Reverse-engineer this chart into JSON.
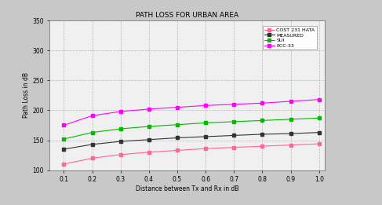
{
  "title": "PATH LOSS FOR URBAN AREA",
  "xlabel": "Distance between Tx and Rx in dB",
  "ylabel": "Path Loss in dB",
  "ylim": [
    100,
    350
  ],
  "yticks": [
    100,
    150,
    200,
    250,
    300,
    350
  ],
  "xticks": [
    0.1,
    0.2,
    0.3,
    0.4,
    0.5,
    0.6,
    0.7,
    0.8,
    0.9,
    1.0
  ],
  "legend_labels": [
    "COST 231 HATA",
    "MEASURED",
    "SUI",
    "ECC-33"
  ],
  "line_colors": [
    "#ff6699",
    "#333333",
    "#00bb00",
    "#ff00ff"
  ],
  "outer_bg": "#c8c8c8",
  "plot_bg": "#f0f0f0",
  "taskbar_color": "#5a8a3c",
  "cost231_vals": [
    110,
    120,
    126,
    130,
    133,
    136,
    138,
    140,
    142,
    144
  ],
  "measured_vals": [
    135,
    143,
    148,
    151,
    154,
    156,
    158,
    160,
    161,
    163
  ],
  "sui_vals": [
    152,
    163,
    169,
    173,
    176,
    179,
    181,
    183,
    185,
    187
  ],
  "ecc33_vals": [
    175,
    191,
    198,
    202,
    205,
    208,
    210,
    212,
    215,
    218
  ]
}
